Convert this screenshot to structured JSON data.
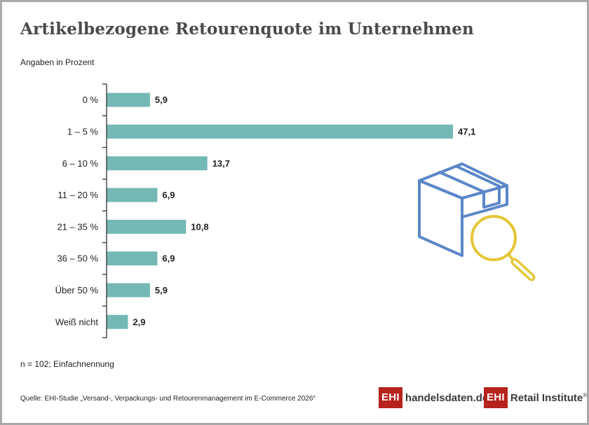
{
  "title": "Artikelbezogene Retourenquote im Unternehmen",
  "subtitle": "Angaben in Prozent",
  "note": "n = 102; Einfachnennung",
  "source": "Quelle: EHI-Studie „Versand-, Verpackungs- und Retourenmanagement im E-Commerce 2026“",
  "logos": {
    "left": {
      "box": "EHI",
      "text": "handelsdaten.de"
    },
    "right": {
      "box": "EHI",
      "text": "Retail Institute",
      "mark": "®"
    }
  },
  "icons": {
    "illustration": "box-with-magnifier-icon"
  },
  "colors": {
    "bar": "#74b8b5",
    "box": "#5b87c9",
    "magnifier": "#e6c637",
    "logo": "#b5231c"
  },
  "chart_data": {
    "type": "bar",
    "orientation": "horizontal",
    "categories": [
      "0 %",
      "1 – 5 %",
      "6 – 10 %",
      "11 – 20 %",
      "21 – 35 %",
      "36 – 50 %",
      "Über 50 %",
      "Weiß nicht"
    ],
    "values": [
      5.9,
      47.1,
      13.7,
      6.9,
      10.8,
      6.9,
      5.9,
      2.9
    ],
    "value_labels": [
      "5,9",
      "47,1",
      "13,7",
      "6,9",
      "10,8",
      "6,9",
      "5,9",
      "2,9"
    ],
    "title": "Artikelbezogene Retourenquote im Unternehmen",
    "xlabel": "",
    "ylabel": "",
    "xlim": [
      0,
      47.1
    ],
    "grid": false,
    "legend": "none"
  }
}
